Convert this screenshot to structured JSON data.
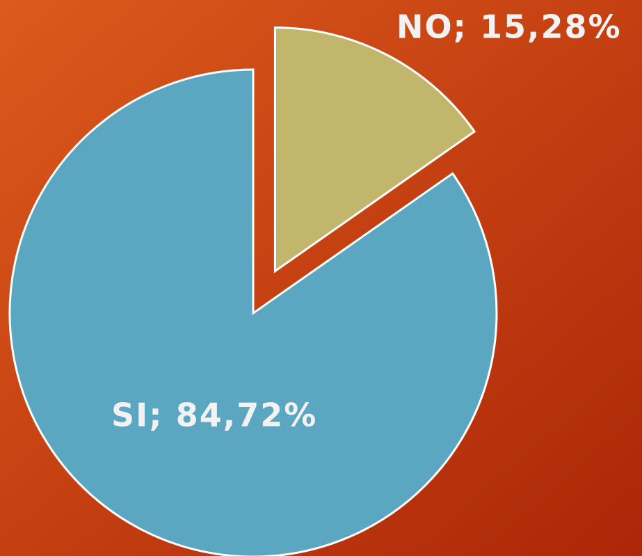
{
  "chart_data": {
    "type": "pie",
    "values": [
      15.28,
      84.72
    ],
    "value_labels": [
      "NO; 15,28%",
      "SI; 84,72%"
    ],
    "colors": [
      "#c2b56c",
      "#5ba6c0"
    ],
    "explode": [
      true,
      false
    ]
  }
}
